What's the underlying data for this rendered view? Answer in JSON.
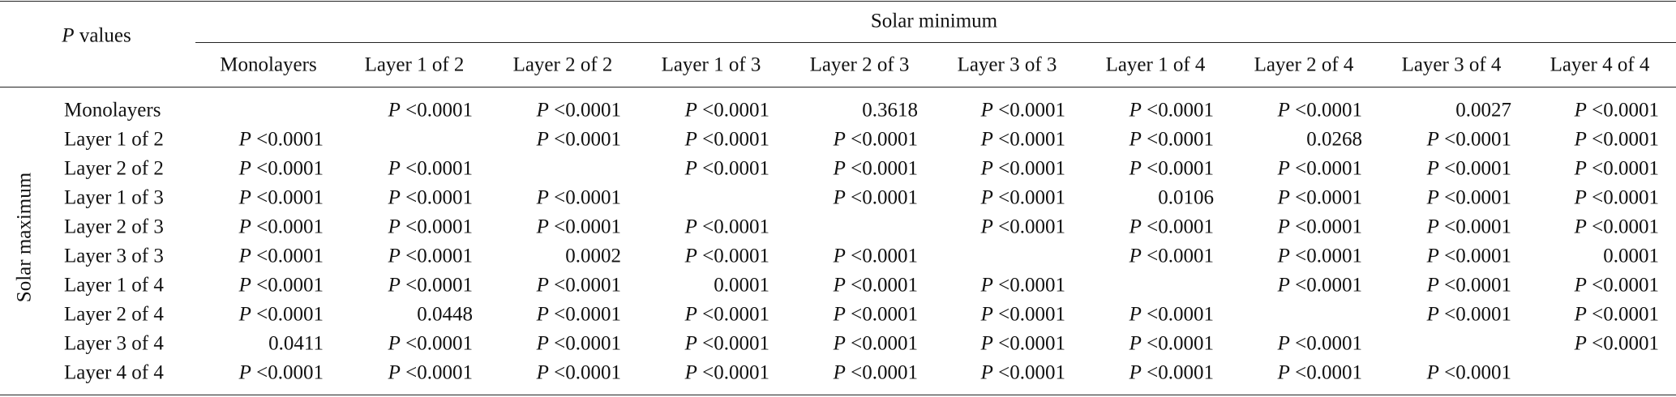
{
  "header": {
    "corner": "P values",
    "group": "Solar minimum",
    "side": "Solar maximum",
    "columns": [
      "Monolayers",
      "Layer 1 of 2",
      "Layer 2 of 2",
      "Layer 1 of 3",
      "Layer 2 of 3",
      "Layer 3 of 3",
      "Layer 1 of 4",
      "Layer 2 of 4",
      "Layer 3 of 4",
      "Layer 4 of 4"
    ]
  },
  "table": {
    "rows": [
      {
        "label": "Monolayers",
        "cells": [
          null,
          "P <0.0001",
          "P <0.0001",
          "P <0.0001",
          "0.3618",
          "P <0.0001",
          "P <0.0001",
          "P <0.0001",
          "0.0027",
          "P <0.0001"
        ]
      },
      {
        "label": "Layer 1 of 2",
        "cells": [
          "P <0.0001",
          null,
          "P <0.0001",
          "P <0.0001",
          "P <0.0001",
          "P <0.0001",
          "P <0.0001",
          "0.0268",
          "P <0.0001",
          "P <0.0001"
        ]
      },
      {
        "label": "Layer 2 of 2",
        "cells": [
          "P <0.0001",
          "P <0.0001",
          null,
          "P <0.0001",
          "P <0.0001",
          "P <0.0001",
          "P <0.0001",
          "P <0.0001",
          "P <0.0001",
          "P <0.0001"
        ]
      },
      {
        "label": "Layer 1 of 3",
        "cells": [
          "P <0.0001",
          "P <0.0001",
          "P <0.0001",
          null,
          "P <0.0001",
          "P <0.0001",
          "0.0106",
          "P <0.0001",
          "P <0.0001",
          "P <0.0001"
        ]
      },
      {
        "label": "Layer 2 of 3",
        "cells": [
          "P <0.0001",
          "P <0.0001",
          "P <0.0001",
          "P <0.0001",
          null,
          "P <0.0001",
          "P <0.0001",
          "P <0.0001",
          "P <0.0001",
          "P <0.0001"
        ]
      },
      {
        "label": "Layer 3 of 3",
        "cells": [
          "P <0.0001",
          "P <0.0001",
          "0.0002",
          "P <0.0001",
          "P <0.0001",
          null,
          "P <0.0001",
          "P <0.0001",
          "P <0.0001",
          "0.0001"
        ]
      },
      {
        "label": "Layer 1 of 4",
        "cells": [
          "P <0.0001",
          "P <0.0001",
          "P <0.0001",
          "0.0001",
          "P <0.0001",
          "P <0.0001",
          null,
          "P <0.0001",
          "P <0.0001",
          "P <0.0001"
        ]
      },
      {
        "label": "Layer 2 of 4",
        "cells": [
          "P <0.0001",
          "0.0448",
          "P <0.0001",
          "P <0.0001",
          "P <0.0001",
          "P <0.0001",
          "P <0.0001",
          null,
          "P <0.0001",
          "P <0.0001"
        ]
      },
      {
        "label": "Layer 3 of 4",
        "cells": [
          "0.0411",
          "P <0.0001",
          "P <0.0001",
          "P <0.0001",
          "P <0.0001",
          "P <0.0001",
          "P <0.0001",
          "P <0.0001",
          null,
          "P <0.0001"
        ]
      },
      {
        "label": "Layer 4 of 4",
        "cells": [
          "P <0.0001",
          "P <0.0001",
          "P <0.0001",
          "P <0.0001",
          "P <0.0001",
          "P <0.0001",
          "P <0.0001",
          "P <0.0001",
          "P <0.0001",
          null
        ]
      }
    ]
  }
}
